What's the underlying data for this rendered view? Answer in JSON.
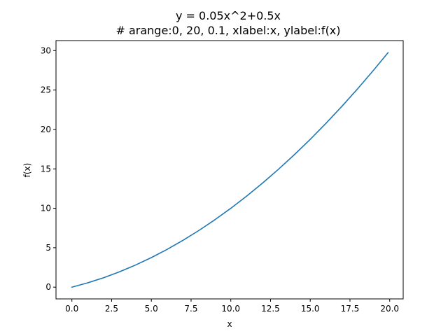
{
  "chart_data": {
    "type": "line",
    "title": "y = 0.05x^2+0.5x",
    "subtitle": "# arange:0, 20, 0.1, xlabel:x, ylabel:f(x)",
    "xlabel": "x",
    "ylabel": "f(x)",
    "xlim": [
      -1,
      20.85
    ],
    "ylim": [
      -1.49,
      31.27
    ],
    "xticks": [
      0,
      2.5,
      5,
      7.5,
      10,
      12.5,
      15,
      17.5,
      20
    ],
    "xtick_labels": [
      "0.0",
      "2.5",
      "5.0",
      "7.5",
      "10.0",
      "12.5",
      "15.0",
      "17.5",
      "20.0"
    ],
    "yticks": [
      0,
      5,
      10,
      15,
      20,
      25,
      30
    ],
    "ytick_labels": [
      "0",
      "5",
      "10",
      "15",
      "20",
      "25",
      "30"
    ],
    "grid": false,
    "legend": "none",
    "series": [
      {
        "color": "#1f77b4",
        "x": [
          0,
          1,
          2,
          3,
          4,
          5,
          6,
          7,
          8,
          9,
          10,
          11,
          12,
          13,
          14,
          15,
          16,
          17,
          18,
          19,
          19.9
        ],
        "y": [
          0,
          0.55,
          1.2,
          1.95,
          2.8,
          3.75,
          4.8,
          5.95,
          7.2,
          8.55,
          10,
          11.55,
          13.2,
          14.95,
          16.8,
          18.75,
          20.8,
          22.95,
          25.2,
          27.55,
          29.75
        ]
      }
    ]
  }
}
